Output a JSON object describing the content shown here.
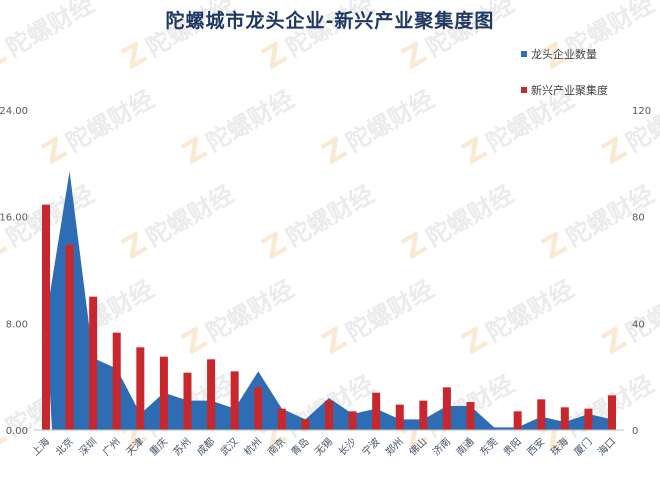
{
  "title": "陀螺城市龙头企业-新兴产业聚集度图",
  "legend": [
    {
      "label": "龙头企业数量",
      "color": "#2e6db4"
    },
    {
      "label": "新兴产业聚集度",
      "color": "#c8282d"
    }
  ],
  "watermark": "陀螺财经",
  "chart_data": {
    "type": "bar",
    "title": "陀螺城市龙头企业-新兴产业聚集度图",
    "categories": [
      "上海",
      "北京",
      "深圳",
      "广州",
      "天津",
      "重庆",
      "苏州",
      "成都",
      "武汉",
      "杭州",
      "南京",
      "青岛",
      "无锡",
      "长沙",
      "宁波",
      "郑州",
      "佛山",
      "济南",
      "南通",
      "东莞",
      "贵阳",
      "西安",
      "珠海",
      "厦门",
      "海口"
    ],
    "series": [
      {
        "name": "龙头企业数量",
        "type": "area",
        "axis": "right",
        "color": "#2e6db4",
        "values": [
          42,
          97,
          27,
          23,
          6,
          14,
          11,
          11,
          8,
          22,
          8,
          4,
          12,
          6,
          8,
          4,
          4,
          9,
          9,
          1,
          1,
          5,
          3,
          6,
          4
        ]
      },
      {
        "name": "新兴产业聚集度",
        "type": "bar",
        "axis": "left",
        "color": "#c8282d",
        "values": [
          16.9,
          13.9,
          10.0,
          7.3,
          6.2,
          5.5,
          4.3,
          5.3,
          4.4,
          3.2,
          1.6,
          0.8,
          2.2,
          1.4,
          2.8,
          1.9,
          2.2,
          3.2,
          2.1,
          0,
          1.4,
          2.3,
          1.7,
          1.6,
          2.6
        ]
      }
    ],
    "left_axis": {
      "ylim": [
        0,
        24
      ],
      "ticks": [
        "0.00",
        "8.00",
        "16.00",
        "24.00"
      ]
    },
    "right_axis": {
      "ylim": [
        0,
        120
      ],
      "ticks": [
        "0",
        "40",
        "80",
        "120"
      ]
    },
    "xlabel": "",
    "ylabel": "",
    "grid": false,
    "legend_position": "top-right"
  }
}
